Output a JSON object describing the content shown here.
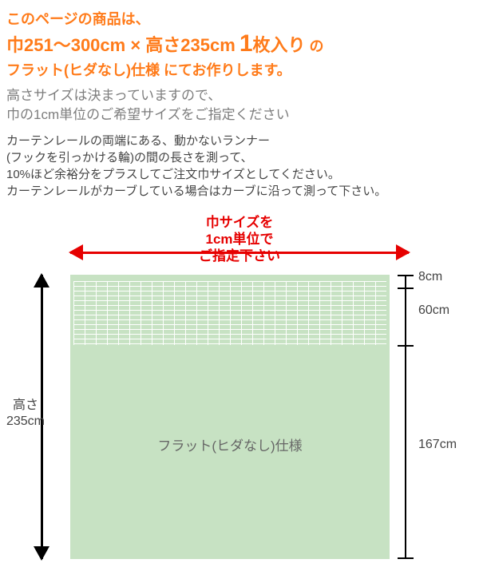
{
  "header": {
    "line1": "このページの商品は、",
    "size_spec": "巾251〜300cm × 高さ235cm",
    "count_num": "1",
    "count_suffix": "枚入り",
    "of": " の",
    "line3": "フラット(ヒダなし)仕様 にてお作りします。"
  },
  "gray": {
    "l1": "高さサイズは決まっていますので、",
    "l2": "巾の1cm単位のご希望サイズをご指定ください"
  },
  "dark": {
    "l1": "カーテンレールの両端にある、動かないランナー",
    "l2": "(フックを引っかける輪)の間の長さを測って、",
    "l3": "10%ほど余裕分をプラスしてご注文巾サイズとしてください。",
    "l4": "カーテンレールがカーブしている場合はカーブに沿って測って下さい。"
  },
  "diagram": {
    "width_label_l1": "巾サイズを",
    "width_label_l2": "1cm単位で",
    "width_label_l3": "ご指定下さい",
    "height_label_l1": "高さ",
    "height_label_l2": "235cm",
    "center_text": "フラット(ヒダなし)仕様",
    "dim_top": "8cm",
    "dim_mid": "60cm",
    "dim_bottom": "167cm",
    "colors": {
      "curtain_bg": "#c7e2c3",
      "accent": "#e60000",
      "orange": "#ff7b1a"
    }
  }
}
